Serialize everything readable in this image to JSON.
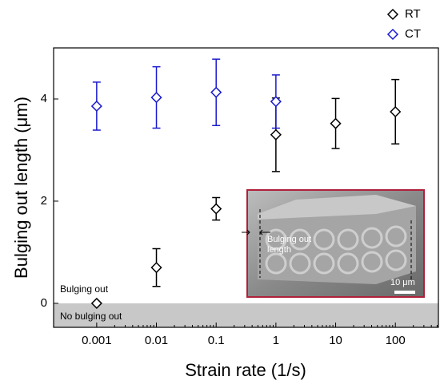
{
  "chart_data": {
    "type": "scatter",
    "x_label": "Strain rate (1/s)",
    "y_label": "Bulging out length (μm)",
    "xscale": "log",
    "xlim": [
      0.00019,
      525
    ],
    "xticks": [
      0.001,
      0.01,
      0.1,
      1,
      10,
      100
    ],
    "ylim": [
      -0.47,
      5
    ],
    "yticks": [
      0,
      2,
      4
    ],
    "legend": "top right",
    "series": [
      {
        "name": "RT",
        "color": "#000000",
        "x": [
          0.001,
          0.01,
          0.1,
          1,
          10,
          100
        ],
        "values": [
          0,
          0.7,
          1.85,
          3.3,
          3.52,
          3.75
        ],
        "errors": [
          0,
          0.37,
          0.22,
          0.72,
          0.49,
          0.63
        ]
      },
      {
        "name": "CT",
        "color": "#1a1ad0",
        "x": [
          0.001,
          0.01,
          0.1,
          1
        ],
        "values": [
          3.86,
          4.03,
          4.13,
          3.95
        ],
        "errors": [
          0.47,
          0.6,
          0.65,
          0.52
        ]
      }
    ],
    "regions": [
      {
        "label": "No bulging out",
        "range": [
          -0.47,
          0
        ]
      }
    ],
    "annotations": [
      "Bulging out"
    ],
    "inset": {
      "labels": [
        "Bulging out length",
        "10 μm"
      ]
    }
  }
}
